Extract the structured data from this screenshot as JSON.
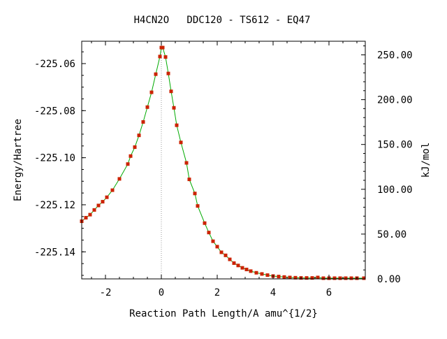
{
  "chart_data": {
    "type": "line",
    "title": "H4CN2O   DDC120 - TS612 - EQ47",
    "xlabel": "Reaction Path Length/A amu^{1/2}",
    "ylabel": "Energy/Hartree",
    "y2label": "kJ/mol",
    "xlim": [
      -2.85,
      7.3
    ],
    "ylim": [
      -225.1515,
      -225.0505
    ],
    "y2lim": [
      0,
      265.2
    ],
    "x_ticks": [
      -2,
      0,
      2,
      4,
      6
    ],
    "x_tick_labels": [
      "-2",
      "0",
      "2",
      "4",
      "6"
    ],
    "y_ticks": [
      -225.06,
      -225.08,
      -225.1,
      -225.12,
      -225.14
    ],
    "y_tick_labels": [
      "-225.06",
      "-225.08",
      "-225.10",
      "-225.12",
      "-225.14"
    ],
    "y2_ticks": [
      250,
      200,
      150,
      100,
      50,
      0
    ],
    "y2_tick_labels": [
      "250.00",
      "200.00",
      "150.00",
      "100.00",
      "50.00",
      "0.00"
    ],
    "grid": false,
    "ts_marker_x": 0,
    "series": [
      {
        "line_color": "#00aa00",
        "marker_color": "#cc2200",
        "x": [
          -2.85,
          -2.7,
          -2.55,
          -2.4,
          -2.25,
          -2.1,
          -1.95,
          -1.75,
          -1.5,
          -1.2,
          -1.1,
          -0.95,
          -0.8,
          -0.65,
          -0.5,
          -0.35,
          -0.2,
          -0.05,
          0,
          0.05,
          0.15,
          0.25,
          0.35,
          0.45,
          0.55,
          0.7,
          0.9,
          1.0,
          1.2,
          1.3,
          1.55,
          1.7,
          1.85,
          2.0,
          2.15,
          2.3,
          2.45,
          2.6,
          2.75,
          2.9,
          3.05,
          3.2,
          3.4,
          3.6,
          3.8,
          4.0,
          4.2,
          4.4,
          4.6,
          4.8,
          5.0,
          5.2,
          5.4,
          5.6,
          5.8,
          6.0,
          6.2,
          6.4,
          6.6,
          6.8,
          7.0,
          7.25
        ],
        "y": [
          -225.127,
          -225.1255,
          -225.1242,
          -225.1222,
          -225.1203,
          -225.1187,
          -225.1168,
          -225.1138,
          -225.109,
          -225.1027,
          -225.0993,
          -225.0955,
          -225.0905,
          -225.0848,
          -225.0785,
          -225.0722,
          -225.0645,
          -225.057,
          -225.0532,
          -225.0532,
          -225.0572,
          -225.0642,
          -225.0718,
          -225.0788,
          -225.0862,
          -225.0935,
          -225.1022,
          -225.1092,
          -225.1152,
          -225.1205,
          -225.1278,
          -225.1318,
          -225.1355,
          -225.1378,
          -225.1402,
          -225.1415,
          -225.1432,
          -225.1448,
          -225.1458,
          -225.1468,
          -225.1475,
          -225.1482,
          -225.1489,
          -225.1494,
          -225.1499,
          -225.1503,
          -225.1505,
          -225.1507,
          -225.1509,
          -225.151,
          -225.1511,
          -225.1511,
          -225.1511,
          -225.1509,
          -225.1512,
          -225.1512,
          -225.1512,
          -225.1512,
          -225.1512,
          -225.1512,
          -225.1512,
          -225.1512
        ]
      }
    ]
  }
}
